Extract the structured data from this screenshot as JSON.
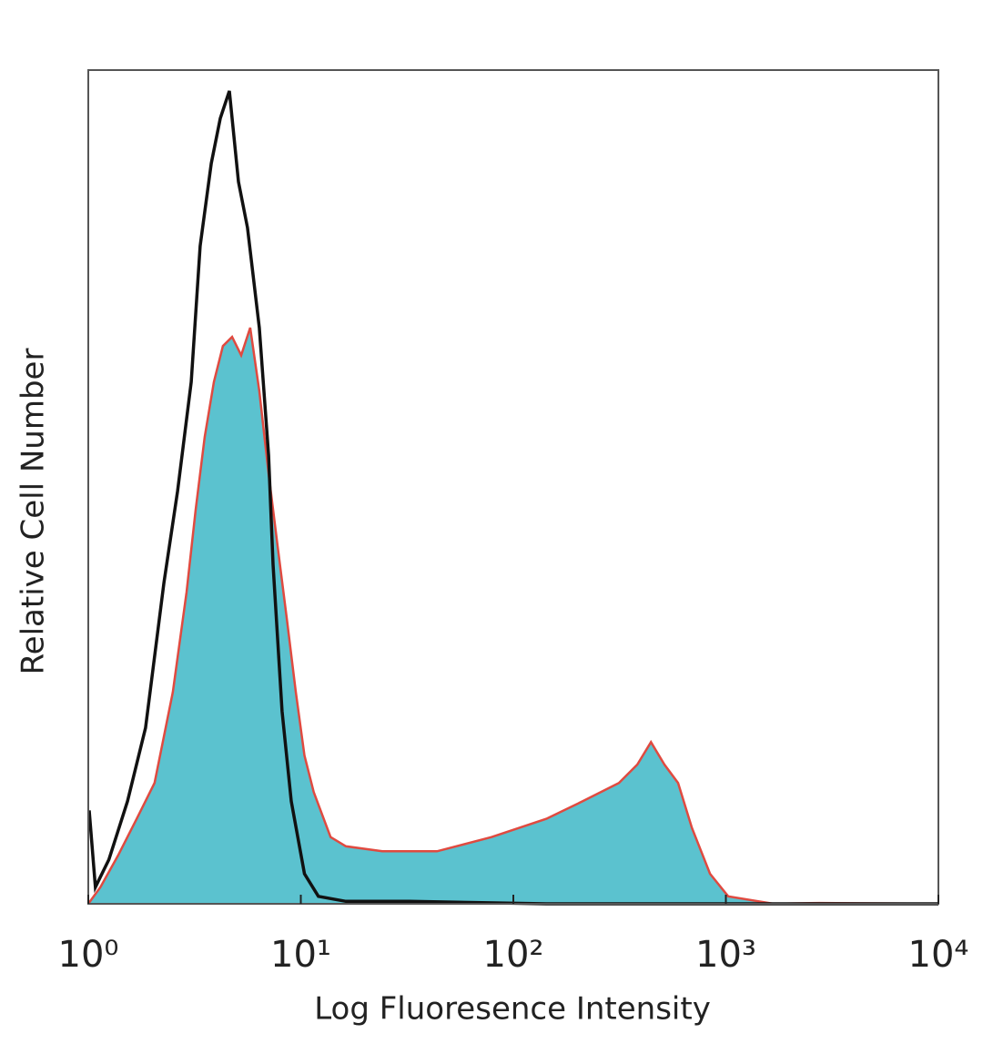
{
  "chart_data": {
    "type": "histogram-overlay",
    "xlabel": "Log Fluoresence Intensity",
    "ylabel": "Relative Cell Number",
    "xscale": "log",
    "xlim": [
      1,
      10000
    ],
    "ylim": [
      0,
      100
    ],
    "xticks": [
      {
        "value": 1,
        "label": "10⁰"
      },
      {
        "value": 10,
        "label": "10¹"
      },
      {
        "value": 100,
        "label": "10²"
      },
      {
        "value": 1000,
        "label": "10³"
      },
      {
        "value": 10000,
        "label": "10⁴"
      }
    ],
    "series": [
      {
        "color": "#5bc2cf",
        "edgecolor": "#e04a40",
        "filled": true,
        "x": [
          1,
          1.14,
          1.38,
          1.69,
          2.05,
          2.5,
          2.9,
          3.2,
          3.53,
          3.9,
          4.3,
          4.75,
          5.24,
          5.78,
          6.38,
          7.05,
          7.78,
          8.59,
          9.47,
          10.4,
          11.5,
          13.8,
          16.3,
          24.2,
          43.7,
          78.9,
          143,
          212,
          314,
          383,
          444,
          514,
          596,
          692,
          842,
          1026,
          1679,
          2748,
          10000
        ],
        "values": [
          0,
          2.0,
          5.8,
          10.2,
          14.5,
          25.4,
          37.4,
          47.3,
          56.0,
          62.6,
          66.9,
          68.0,
          65.8,
          69.1,
          61.5,
          51.6,
          42.9,
          34.2,
          25.4,
          17.8,
          13.4,
          8.0,
          6.9,
          6.3,
          6.3,
          8.0,
          10.2,
          12.3,
          14.5,
          16.7,
          19.4,
          16.7,
          14.5,
          9.1,
          3.6,
          0.9,
          0,
          0.1,
          0
        ]
      },
      {
        "color": "#111111",
        "filled": false,
        "x": [
          1.01,
          1.08,
          1.25,
          1.53,
          1.86,
          2.27,
          2.63,
          3.05,
          3.36,
          3.79,
          4.18,
          4.61,
          5.09,
          5.61,
          6.38,
          7.05,
          7.4,
          8.16,
          9.02,
          10.4,
          12.1,
          16.3,
          32.5,
          143,
          10000
        ],
        "values": [
          11.2,
          2.0,
          5.3,
          12.3,
          21.1,
          38.5,
          49.5,
          62.6,
          78.9,
          88.8,
          94.2,
          97.5,
          86.6,
          81.1,
          69.1,
          53.8,
          40.7,
          23.1,
          12.3,
          3.6,
          0.9,
          0.3,
          0.3,
          0,
          0
        ]
      }
    ]
  }
}
